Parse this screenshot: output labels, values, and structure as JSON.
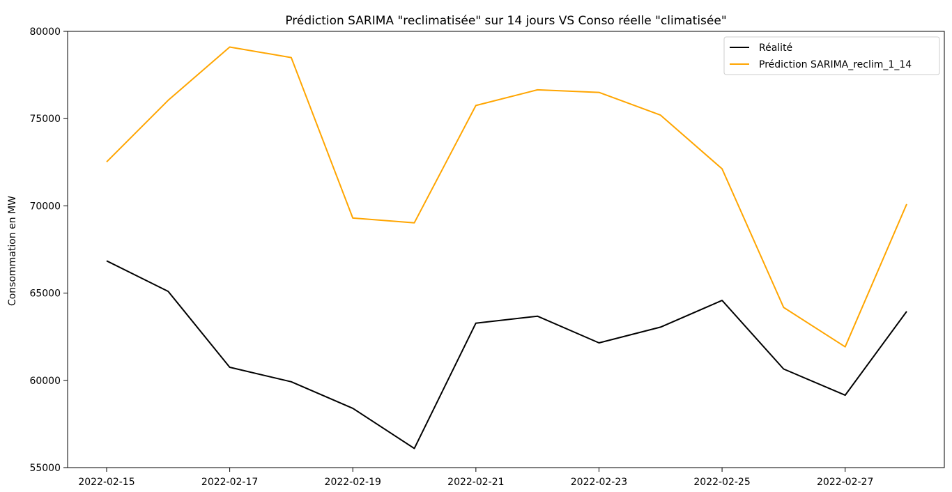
{
  "chart_data": {
    "type": "line",
    "title": "Prédiction SARIMA \"reclimatisée\" sur 14 jours VS Conso réelle \"climatisée\"",
    "xlabel": "",
    "ylabel": "Consommation en MW",
    "x": [
      "2022-02-15",
      "2022-02-16",
      "2022-02-17",
      "2022-02-18",
      "2022-02-19",
      "2022-02-20",
      "2022-02-21",
      "2022-02-22",
      "2022-02-23",
      "2022-02-24",
      "2022-02-25",
      "2022-02-26",
      "2022-02-27",
      "2022-02-28"
    ],
    "xticks": [
      "2022-02-15",
      "2022-02-17",
      "2022-02-19",
      "2022-02-21",
      "2022-02-23",
      "2022-02-25",
      "2022-02-27"
    ],
    "ylim": [
      55000,
      80000
    ],
    "yticks": [
      55000,
      60000,
      65000,
      70000,
      75000,
      80000
    ],
    "grid": false,
    "legend_position": "top-right",
    "series": [
      {
        "name": "Réalité",
        "color": "#000000",
        "values": [
          66850,
          65100,
          60750,
          59920,
          58400,
          56100,
          63280,
          63680,
          62150,
          63050,
          64580,
          60650,
          59150,
          63950
        ]
      },
      {
        "name": "Prédiction SARIMA_reclim_1_14",
        "color": "#FFA500",
        "values": [
          72520,
          76050,
          79100,
          78500,
          69300,
          69030,
          75750,
          76650,
          76500,
          75200,
          72120,
          64180,
          61920,
          70100
        ]
      }
    ]
  }
}
